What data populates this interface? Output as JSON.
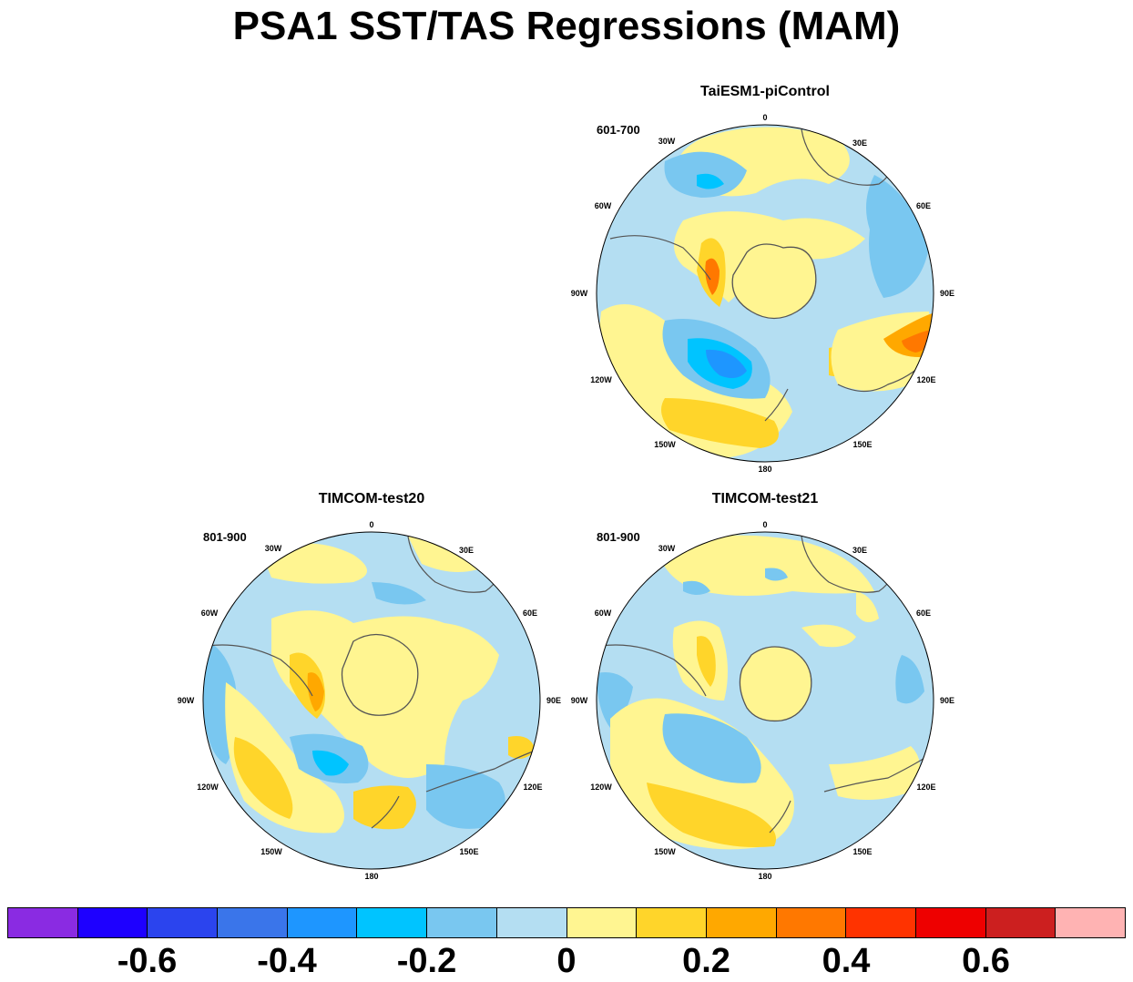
{
  "title": "PSA1 SST/TAS Regressions (MAM)",
  "panels": [
    {
      "title": "TaiESM1-piControl",
      "period": "601-700"
    },
    {
      "title": "TIMCOM-test20",
      "period": "801-900"
    },
    {
      "title": "TIMCOM-test21",
      "period": "801-900"
    }
  ],
  "longitude_labels": [
    "0",
    "30E",
    "60E",
    "90E",
    "120E",
    "150E",
    "180",
    "150W",
    "120W",
    "90W",
    "60W",
    "30W"
  ],
  "colorbar": {
    "colors": [
      "#8a2be2",
      "#1e00ff",
      "#2b44ee",
      "#3a75ea",
      "#1e96ff",
      "#00c4ff",
      "#79c7f0",
      "#b4def2",
      "#fff591",
      "#ffd52a",
      "#ffa800",
      "#ff7800",
      "#ff3300",
      "#ee0000",
      "#cc1f1f",
      "#ffb3b3"
    ],
    "tick_labels": [
      "-0.6",
      "-0.4",
      "-0.2",
      "0",
      "0.2",
      "0.4",
      "0.6"
    ]
  },
  "fill_colors": {
    "ocean_base": "#b4def2",
    "light_blue": "#79c7f0",
    "mid_blue": "#00c4ff",
    "deep_blue": "#1e96ff",
    "light_yellow": "#fff591",
    "yellow": "#ffd52a",
    "orange": "#ffa800",
    "dark_orange": "#ff7800",
    "coast": "#555555"
  }
}
